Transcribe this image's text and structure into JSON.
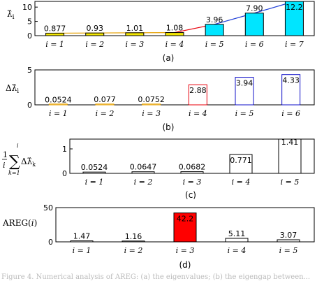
{
  "chart_data": [
    {
      "type": "bar",
      "ylabel": "λ̂ᵢ",
      "categories": [
        "i = 1",
        "i = 2",
        "i = 3",
        "i = 4",
        "i = 5",
        "i = 6",
        "i = 7"
      ],
      "values": [
        0.877,
        0.93,
        1.01,
        1.08,
        3.96,
        7.9,
        12.2
      ],
      "value_labels": [
        "0.877",
        "0.93",
        "1.01",
        "1.08",
        "3.96",
        "7.90",
        "12.2"
      ],
      "bar_colors": [
        "#f2e600",
        "#f2e600",
        "#f2e600",
        "#f2e600",
        "#00e5ff",
        "#00e5ff",
        "#00e5ff"
      ],
      "yticks": [
        "0",
        "5",
        "10"
      ],
      "ylim": [
        0,
        12
      ],
      "caption": "(a)"
    },
    {
      "type": "bar",
      "ylabel": "Δλ̂ᵢ",
      "categories": [
        "i = 1",
        "i = 2",
        "i = 3",
        "i = 4",
        "i = 5",
        "i = 6"
      ],
      "values": [
        0.0524,
        0.077,
        0.0752,
        2.88,
        3.94,
        4.33
      ],
      "value_labels": [
        "0.0524",
        "0.077",
        "0.0752",
        "2.88",
        "3.94",
        "4.33"
      ],
      "bar_colors": [
        "#e6a000",
        "#e6a000",
        "#e6a000",
        "#e8000b",
        "#1010c8",
        "#1010c8"
      ],
      "yticks": [
        "0",
        "5"
      ],
      "ylim": [
        0,
        5
      ],
      "caption": "(b)"
    },
    {
      "type": "bar",
      "ylabel": "(1/i) Σ Δλ̂ₖ",
      "categories": [
        "i = 1",
        "i = 2",
        "i = 3",
        "i = 4",
        "i = 5"
      ],
      "values": [
        0.0524,
        0.0647,
        0.0682,
        0.771,
        1.41
      ],
      "value_labels": [
        "0.0524",
        "0.0647",
        "0.0682",
        "0.771",
        "1.41"
      ],
      "bar_colors": [
        "#000000",
        "#000000",
        "#000000",
        "#000000",
        "#000000"
      ],
      "yticks": [
        "0",
        "1"
      ],
      "ylim": [
        0,
        1.4
      ],
      "caption": "(c)"
    },
    {
      "type": "bar",
      "ylabel": "AREG(i)",
      "categories": [
        "i = 1",
        "i = 2",
        "i = 3",
        "i = 4",
        "i = 5"
      ],
      "values": [
        1.47,
        1.16,
        42.2,
        5.11,
        3.07
      ],
      "value_labels": [
        "1.47",
        "1.16",
        "42.2",
        "5.11",
        "3.07"
      ],
      "bar_colors": [
        "#000000",
        "#000000",
        "#ff0000",
        "#000000",
        "#000000"
      ],
      "yticks": [
        "0",
        "50"
      ],
      "ylim": [
        0,
        50
      ],
      "caption": "(d)"
    }
  ],
  "figure_caption": "Figure 4. Numerical analysis of AREG: (a) the eigenvalues; (b) the eigengap between...",
  "colors": {
    "trend_yellow": "#e6a000",
    "trend_blue": "#1f3fd8",
    "trend_red": "#e8000b"
  }
}
